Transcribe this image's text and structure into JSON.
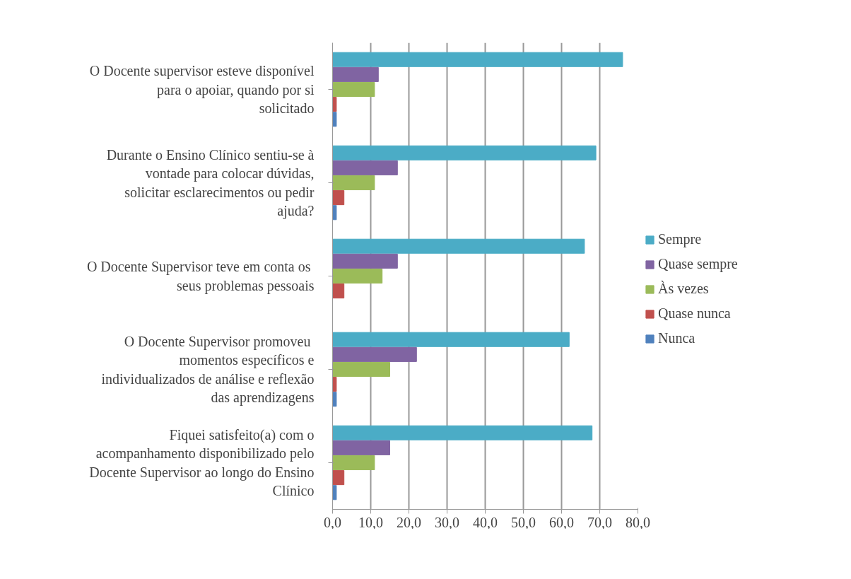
{
  "chart_data": {
    "type": "bar",
    "orientation": "horizontal",
    "categories": [
      "O Docente supervisor esteve disponível para o apoiar, quando por si solicitado",
      "Durante o Ensino Clínico sentiu-se à vontade para colocar dúvidas, solicitar esclarecimentos ou pedir ajuda?",
      "O Docente Supervisor  teve em conta os seus problemas pessoais",
      "O Docente Supervisor  promoveu momentos específicos e individualizados de análise e reflexão das aprendizagens",
      "Fiquei satisfeito(a) com o acompanhamento disponibilizado pelo Docente Supervisor ao longo do Ensino Clínico"
    ],
    "series": [
      {
        "name": "Sempre",
        "color": "#4bacc6",
        "values": [
          76,
          69,
          66,
          62,
          68
        ]
      },
      {
        "name": "Quase sempre",
        "color": "#8064a2",
        "values": [
          12,
          17,
          17,
          22,
          15
        ]
      },
      {
        "name": "Às vezes",
        "color": "#9bbb59",
        "values": [
          11,
          11,
          13,
          15,
          11
        ]
      },
      {
        "name": "Quase nunca",
        "color": "#c0504d",
        "values": [
          1,
          3,
          3,
          1,
          3
        ]
      },
      {
        "name": "Nunca",
        "color": "#4f81bd",
        "values": [
          1,
          1,
          0,
          1,
          1
        ]
      }
    ],
    "xlim": [
      0,
      80
    ],
    "xticks": [
      {
        "value": 0,
        "label": "0,0"
      },
      {
        "value": 10,
        "label": "10,0"
      },
      {
        "value": 20,
        "label": "20,0"
      },
      {
        "value": 30,
        "label": "30,0"
      },
      {
        "value": 40,
        "label": "40,0"
      },
      {
        "value": 50,
        "label": "50,0"
      },
      {
        "value": 60,
        "label": "60,0"
      },
      {
        "value": 70,
        "label": "70,0"
      },
      {
        "value": 80,
        "label": "80,0"
      }
    ],
    "grid": "x",
    "legend": "right"
  }
}
